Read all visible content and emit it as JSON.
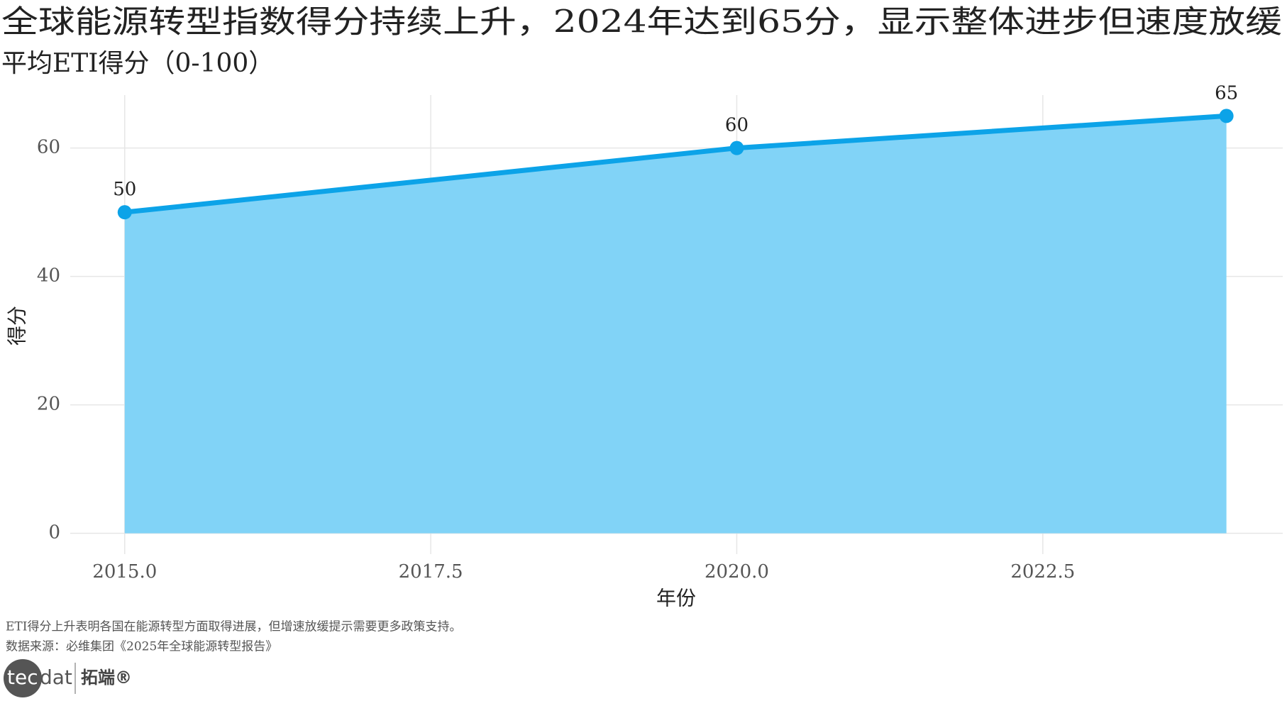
{
  "chart_data": {
    "type": "area",
    "title": "全球能源转型指数得分持续上升，2024年达到65分，显示整体进步但速度放缓",
    "subtitle": "平均ETI得分（0-100）",
    "x_label": "年份",
    "y_label": "得分",
    "x": [
      2015,
      2020,
      2024
    ],
    "values": [
      50,
      60,
      65
    ],
    "color": "#0ca3e8",
    "fill": "#81d3f7",
    "xlim": [
      2014.555,
      2024.46
    ],
    "xticks": [
      {
        "value": 2015,
        "label": "2015.0"
      },
      {
        "value": 2017.5,
        "label": "2017.5"
      },
      {
        "value": 2020,
        "label": "2020.0"
      },
      {
        "value": 2022.5,
        "label": "2022.5"
      }
    ],
    "ylim": [
      -3.25,
      68.25
    ],
    "yticks": [
      0,
      20,
      40,
      60
    ],
    "grid": true,
    "caption": [
      "ETI得分上升表明各国在能源转型方面取得进展，但增速放缓提示需要更多政策支持。",
      "数据来源：必维集团《2025年全球能源转型报告》"
    ]
  },
  "logo": {
    "mark_left": "tec",
    "mark_right": "dat",
    "text": "拓端®"
  }
}
